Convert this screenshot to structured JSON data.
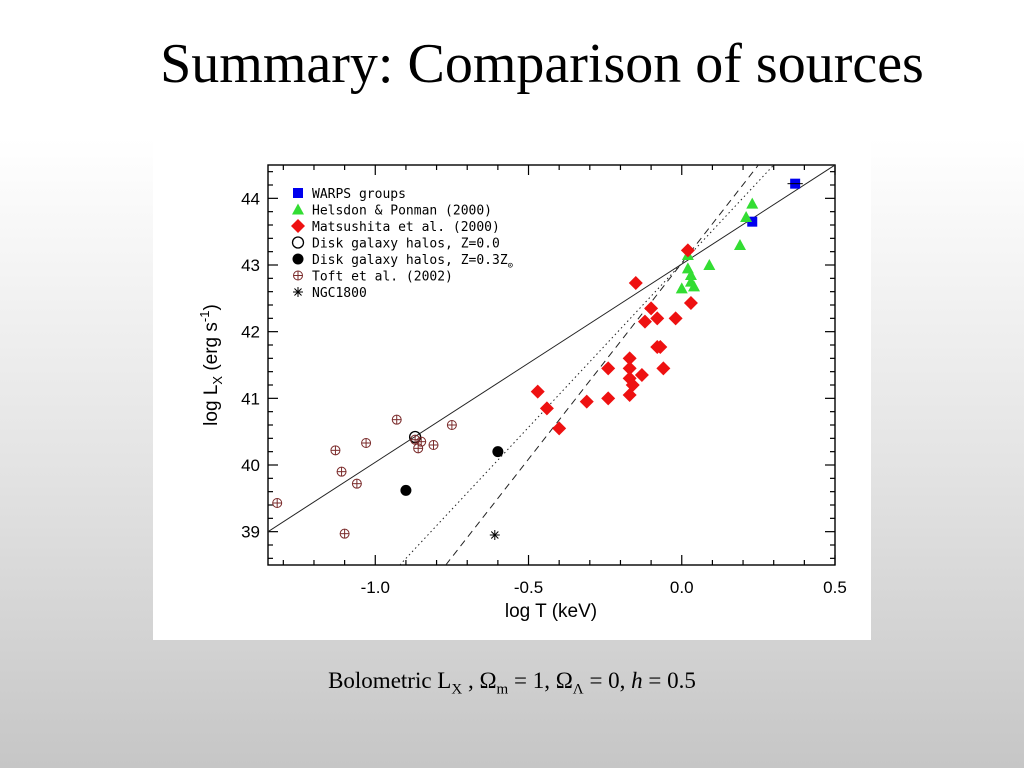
{
  "slide": {
    "title": "Summary: Comparison of sources"
  },
  "caption": {
    "bolometric": "Bolometric L",
    "lx_sub": "X",
    "sep1": " , ",
    "omega_m": "Ω",
    "m_sub": "m",
    "eq1": " = 1, ",
    "omega_l": "Ω",
    "l_sub": "Λ",
    "eq2": " = 0, ",
    "h": "h",
    "eq3": " = 0.5"
  },
  "chart_data": {
    "type": "scatter",
    "xlabel": "log T (keV)",
    "ylabel_main": "log L",
    "ylabel_sub": "X",
    "ylabel_units": " (erg s",
    "ylabel_exp": "-1",
    "ylabel_close": ")",
    "xlim": [
      -1.35,
      0.5
    ],
    "ylim": [
      38.5,
      44.5
    ],
    "xticks": [
      -1.0,
      -0.5,
      0.0,
      0.5
    ],
    "xtick_labels": [
      "-1.0",
      "-0.5",
      "0.0",
      "0.5"
    ],
    "yticks": [
      39,
      40,
      41,
      42,
      43,
      44
    ],
    "ytick_labels": [
      "39",
      "40",
      "41",
      "42",
      "43",
      "44"
    ],
    "grid": false,
    "legend_position": "top-left",
    "legend": [
      {
        "label": "WARPS groups",
        "marker": "square",
        "color": "#0000ee"
      },
      {
        "label": "Helsdon & Ponman (2000)",
        "marker": "triangle",
        "color": "#33dd33"
      },
      {
        "label": "Matsushita et al. (2000)",
        "marker": "diamond",
        "color": "#ee1111"
      },
      {
        "label": "Disk galaxy halos, Z=0.0",
        "marker": "circle-open",
        "color": "#000000"
      },
      {
        "label": "Disk galaxy halos, Z=0.3Z",
        "sub": "⊙",
        "marker": "circle-filled",
        "color": "#000000"
      },
      {
        "label": "Toft et al. (2002)",
        "marker": "circle-plus",
        "color": "#7a2a2a"
      },
      {
        "label": "NGC1800",
        "marker": "asterisk",
        "color": "#000000"
      }
    ],
    "lines": [
      {
        "name": "solid",
        "style": "solid",
        "points": [
          [
            -1.35,
            39.0
          ],
          [
            0.5,
            44.5
          ]
        ]
      },
      {
        "name": "dotted",
        "style": "dotted",
        "points": [
          [
            -0.92,
            38.5
          ],
          [
            0.3,
            44.5
          ]
        ]
      },
      {
        "name": "dashed",
        "style": "dashed",
        "points": [
          [
            -0.77,
            38.5
          ],
          [
            0.25,
            44.5
          ]
        ]
      }
    ],
    "series": [
      {
        "name": "WARPS groups",
        "marker": "square",
        "color": "#0000ee",
        "points": [
          [
            0.37,
            44.22
          ],
          [
            0.23,
            43.65
          ]
        ]
      },
      {
        "name": "Helsdon & Ponman (2000)",
        "marker": "triangle",
        "color": "#33dd33",
        "points": [
          [
            0.23,
            43.92
          ],
          [
            0.21,
            43.72
          ],
          [
            0.19,
            43.3
          ],
          [
            0.09,
            43.0
          ],
          [
            0.02,
            43.15
          ],
          [
            0.02,
            42.95
          ],
          [
            0.03,
            42.85
          ],
          [
            0.03,
            42.75
          ],
          [
            0.0,
            42.65
          ],
          [
            0.04,
            42.68
          ]
        ]
      },
      {
        "name": "Matsushita et al. (2000)",
        "marker": "diamond",
        "color": "#ee1111",
        "points": [
          [
            0.02,
            43.22
          ],
          [
            -0.15,
            42.73
          ],
          [
            0.03,
            42.43
          ],
          [
            -0.1,
            42.35
          ],
          [
            -0.08,
            42.2
          ],
          [
            -0.12,
            42.15
          ],
          [
            -0.02,
            42.2
          ],
          [
            -0.08,
            41.77
          ],
          [
            -0.07,
            41.77
          ],
          [
            -0.17,
            41.6
          ],
          [
            -0.24,
            41.45
          ],
          [
            -0.17,
            41.45
          ],
          [
            -0.13,
            41.35
          ],
          [
            -0.17,
            41.3
          ],
          [
            -0.16,
            41.2
          ],
          [
            -0.06,
            41.45
          ],
          [
            -0.17,
            41.05
          ],
          [
            -0.47,
            41.1
          ],
          [
            -0.24,
            41.0
          ],
          [
            -0.31,
            40.95
          ],
          [
            -0.44,
            40.85
          ],
          [
            -0.4,
            40.55
          ]
        ]
      },
      {
        "name": "Disk galaxy halos, Z=0.0",
        "marker": "circle-open",
        "color": "#000000",
        "points": [
          [
            -0.87,
            40.42
          ]
        ]
      },
      {
        "name": "Disk galaxy halos, Z=0.3Z⊙",
        "marker": "circle-filled",
        "color": "#000000",
        "points": [
          [
            -0.6,
            40.2
          ],
          [
            -0.9,
            39.62
          ]
        ]
      },
      {
        "name": "Toft et al. (2002)",
        "marker": "circle-plus",
        "color": "#7a2a2a",
        "points": [
          [
            -1.32,
            39.43
          ],
          [
            -1.13,
            40.22
          ],
          [
            -1.11,
            39.9
          ],
          [
            -1.06,
            39.72
          ],
          [
            -1.03,
            40.33
          ],
          [
            -0.93,
            40.68
          ],
          [
            -0.87,
            40.38
          ],
          [
            -0.86,
            40.25
          ],
          [
            -0.85,
            40.35
          ],
          [
            -0.81,
            40.3
          ],
          [
            -0.75,
            40.6
          ],
          [
            -1.1,
            38.97
          ]
        ]
      },
      {
        "name": "NGC1800",
        "marker": "asterisk",
        "color": "#000000",
        "points": [
          [
            -0.61,
            38.95
          ]
        ]
      }
    ]
  }
}
